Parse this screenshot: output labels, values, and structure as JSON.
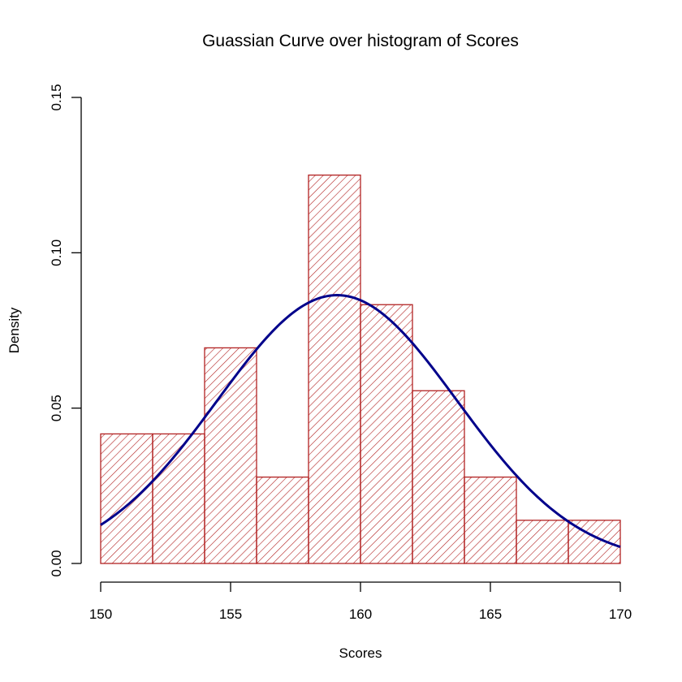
{
  "chart_data": {
    "type": "bar",
    "title": "Guassian Curve over histogram of Scores",
    "xlabel": "Scores",
    "ylabel": "Density",
    "xlim": [
      150,
      170
    ],
    "ylim": [
      0,
      0.15
    ],
    "x_ticks": [
      150,
      155,
      160,
      165,
      170
    ],
    "x_tick_labels": [
      "150",
      "155",
      "160",
      "165",
      "170"
    ],
    "y_ticks": [
      0,
      0.05,
      0.1,
      0.15
    ],
    "y_tick_labels": [
      "0.00",
      "0.05",
      "0.10",
      "0.15"
    ],
    "bins": [
      {
        "start": 150,
        "end": 152,
        "density": 0.0417
      },
      {
        "start": 152,
        "end": 154,
        "density": 0.0417
      },
      {
        "start": 154,
        "end": 156,
        "density": 0.0694
      },
      {
        "start": 156,
        "end": 158,
        "density": 0.0278
      },
      {
        "start": 158,
        "end": 160,
        "density": 0.125
      },
      {
        "start": 160,
        "end": 162,
        "density": 0.0833
      },
      {
        "start": 162,
        "end": 164,
        "density": 0.0556
      },
      {
        "start": 164,
        "end": 166,
        "density": 0.0278
      },
      {
        "start": 166,
        "end": 168,
        "density": 0.0139
      },
      {
        "start": 168,
        "end": 170,
        "density": 0.0139
      }
    ],
    "bar_style": "hatched",
    "bar_color": "#b22222",
    "curve": {
      "type": "normal",
      "mean": 159.1,
      "sd": 4.62,
      "color": "#00008b"
    },
    "grid": false,
    "legend": "none"
  }
}
